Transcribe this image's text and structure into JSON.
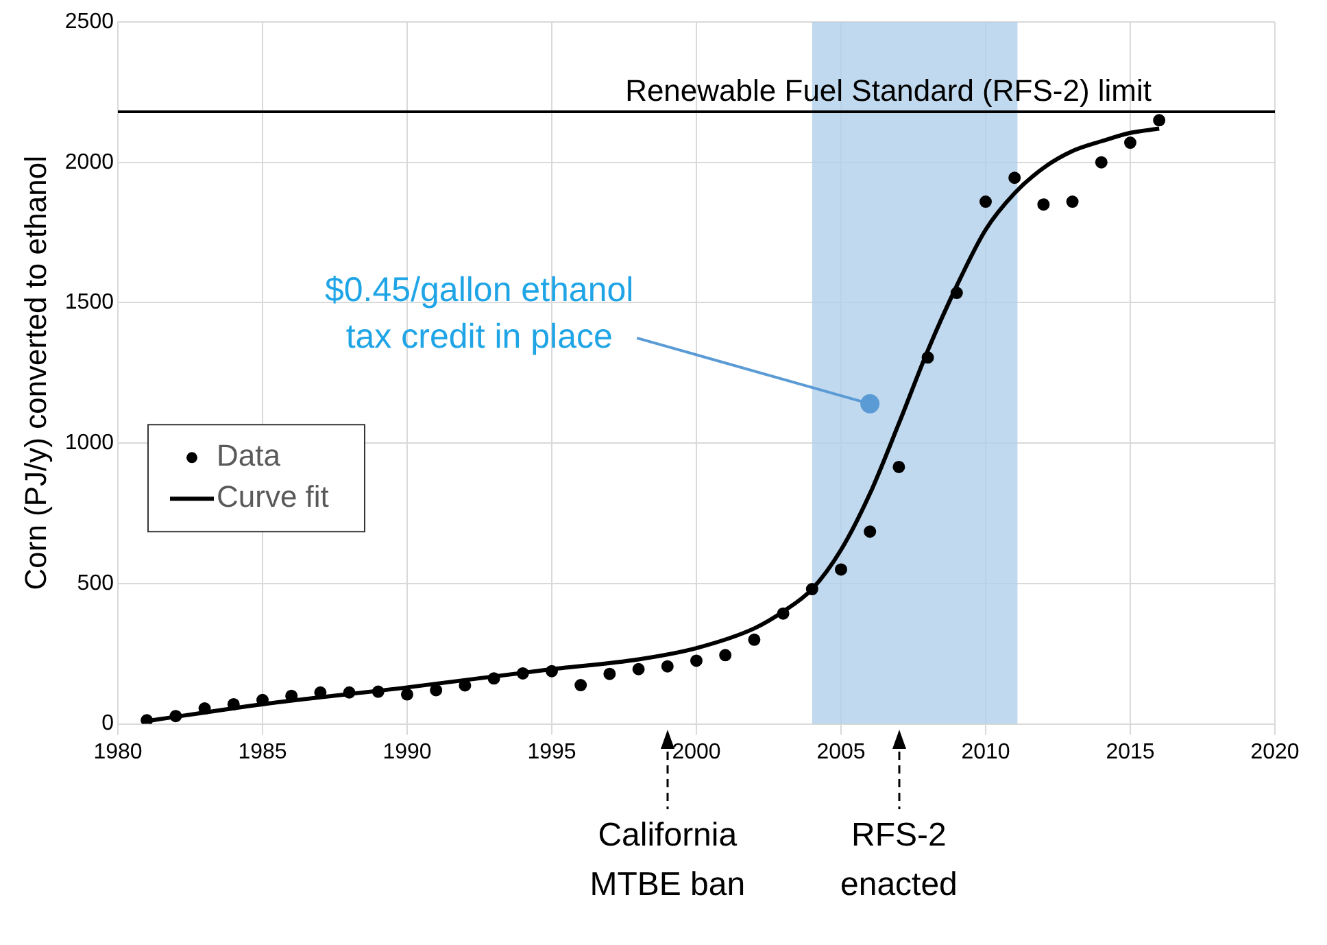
{
  "chart_data": {
    "type": "scatter",
    "ylabel": "Corn (PJ/y) converted to ethanol",
    "xlim": [
      1980,
      2020
    ],
    "xticks": [
      1980,
      1985,
      1990,
      1995,
      2000,
      2005,
      2010,
      2015,
      2020
    ],
    "ylim": [
      0,
      2500
    ],
    "yticks": [
      0,
      500,
      1000,
      1500,
      2000,
      2500
    ],
    "grid": true,
    "legend": "left",
    "series": [
      {
        "name": "Data",
        "type": "scatter",
        "marker": "circle",
        "color": "#000000",
        "x": [
          1981,
          1982,
          1983,
          1984,
          1985,
          1986,
          1987,
          1988,
          1989,
          1990,
          1991,
          1992,
          1993,
          1994,
          1995,
          1996,
          1997,
          1998,
          1999,
          2000,
          2001,
          2002,
          2003,
          2004,
          2005,
          2006,
          2007,
          2008,
          2009,
          2010,
          2011,
          2012,
          2013,
          2014,
          2015,
          2016
        ],
        "values": [
          13,
          28,
          55,
          70,
          85,
          100,
          112,
          112,
          115,
          105,
          120,
          137,
          162,
          180,
          188,
          138,
          178,
          195,
          205,
          225,
          245,
          300,
          393,
          480,
          550,
          685,
          915,
          1305,
          1535,
          1860,
          1945,
          1850,
          1860,
          2000,
          2070,
          2150
        ]
      },
      {
        "name": "Curve fit",
        "type": "line",
        "marker": "none",
        "color": "#000000",
        "x": [
          1981,
          1985,
          1990,
          1995,
          1998,
          2000,
          2002,
          2003,
          2004,
          2005,
          2006,
          2007,
          2008,
          2009,
          2010,
          2011,
          2012,
          2013,
          2014,
          2015,
          2016
        ],
        "values": [
          10,
          70,
          130,
          195,
          230,
          270,
          340,
          400,
          480,
          620,
          820,
          1070,
          1330,
          1560,
          1760,
          1890,
          1980,
          2040,
          2075,
          2105,
          2120
        ]
      }
    ],
    "bands": [
      {
        "axis": "x",
        "from": 2004,
        "to": 2011.1,
        "color": "#b0cfea"
      }
    ],
    "ref_lines": [
      {
        "axis": "y",
        "value": 2180,
        "label": "Renewable Fuel Standard (RFS-2) limit",
        "color": "#000000"
      }
    ],
    "annotations": [
      {
        "text": "$0.45/gallon ethanol tax credit in place",
        "x": 2006,
        "y": 1140
      },
      "California MTBE ban",
      "RFS-2 enacted"
    ]
  }
}
